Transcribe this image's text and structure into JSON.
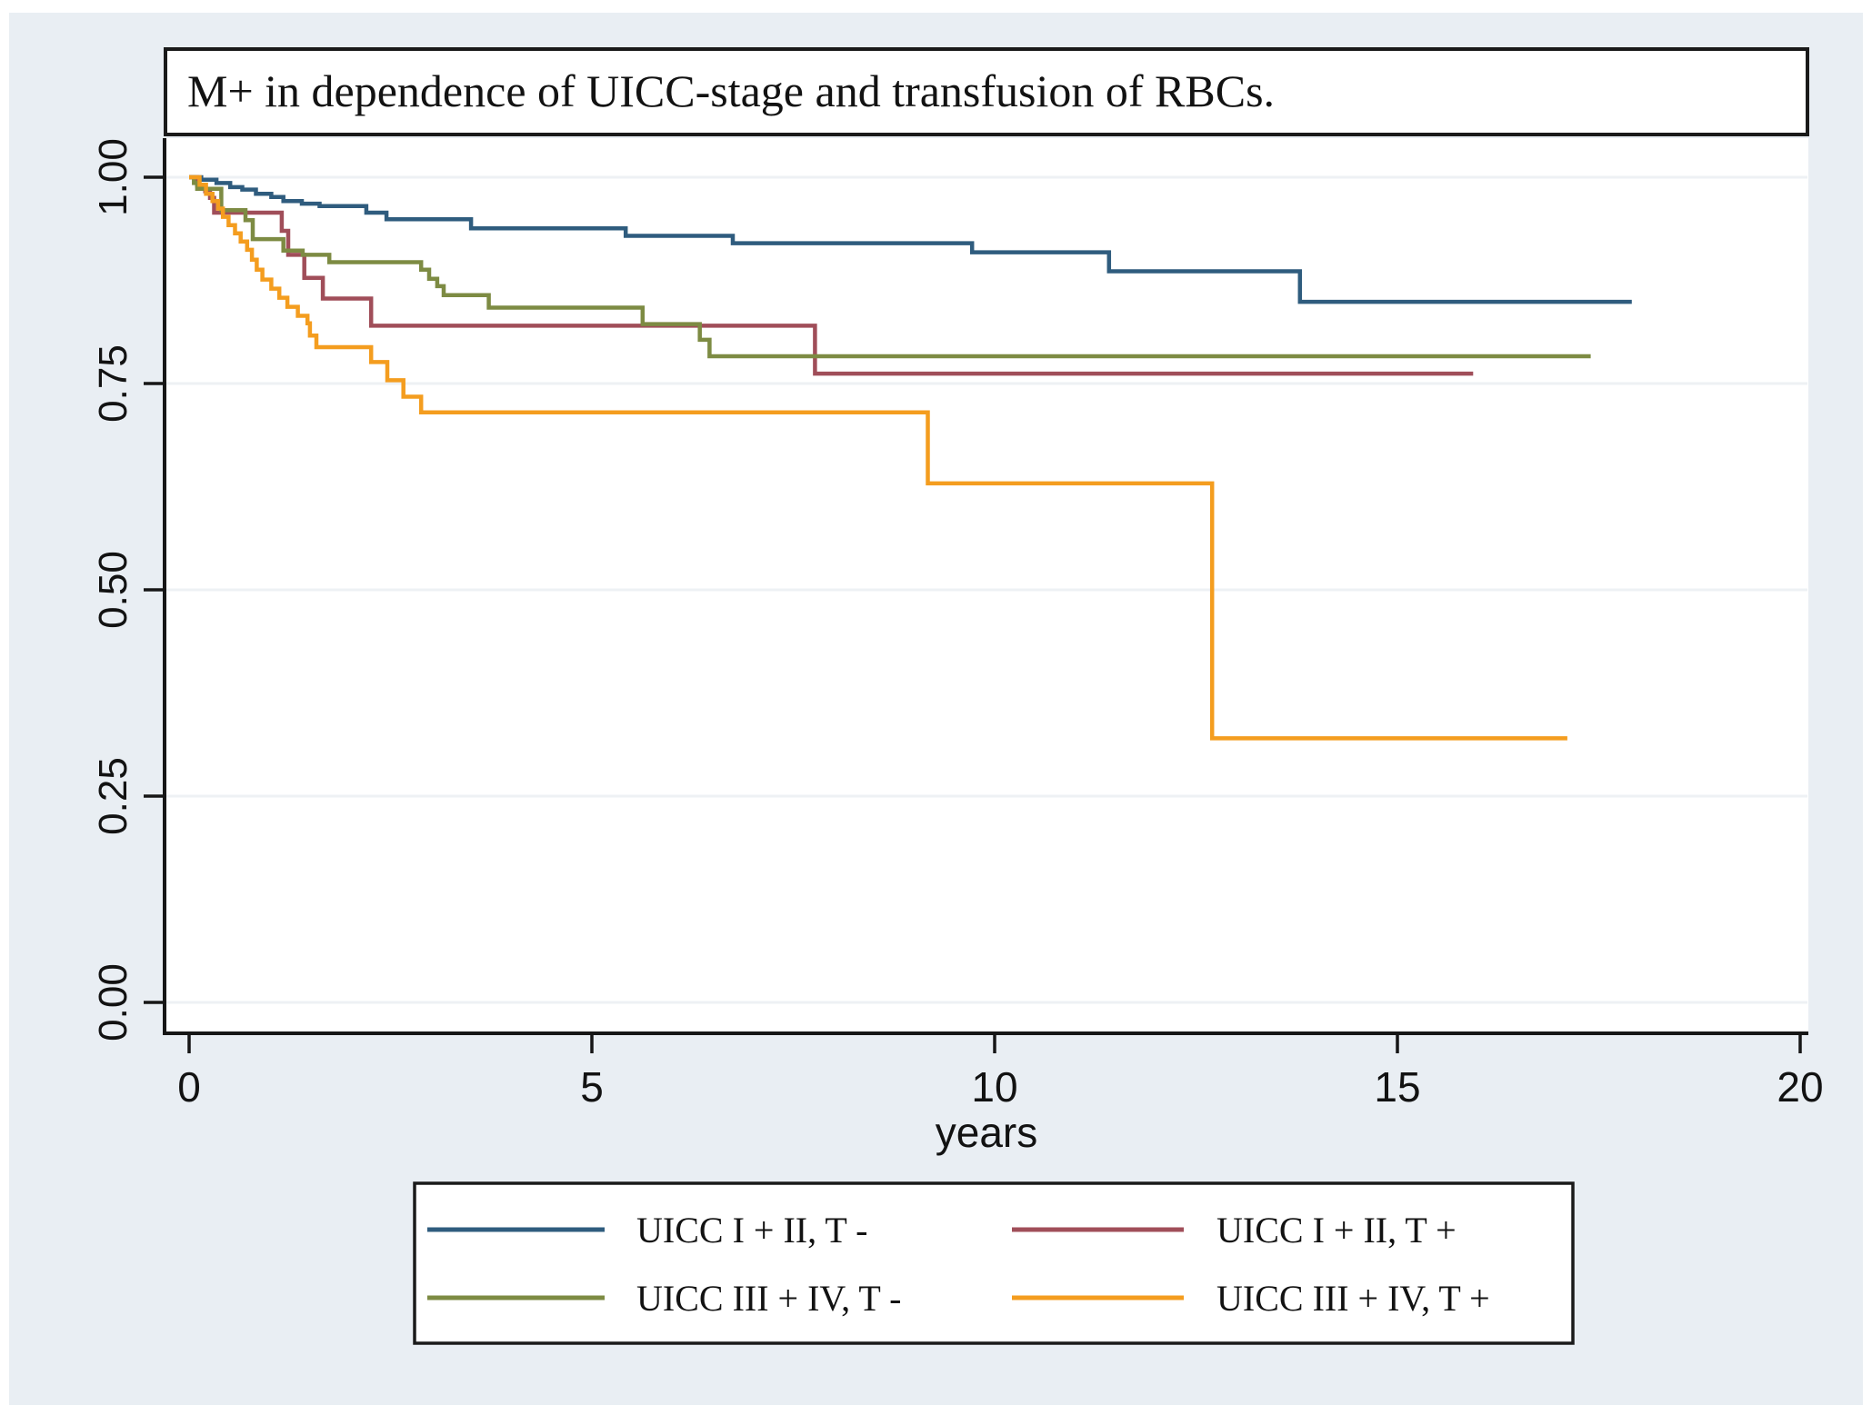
{
  "title": "M+ in dependence of UICC-stage and transfusion of RBCs.",
  "colors": {
    "figure_background": "#e9eef3",
    "plot_background": "#ffffff",
    "gridline": "#eef1f4",
    "axis": "#161616",
    "text": "#121212",
    "box_border": "#1a1a1a",
    "navy": "#2f5c7e",
    "maroon": "#a04e59",
    "olive": "#7d8b43",
    "orange": "#f49d1f"
  },
  "chart_data": {
    "type": "line",
    "subtype": "kaplan-meier-step",
    "title": "M+ in dependence of UICC-stage and transfusion of RBCs.",
    "xlabel": "years",
    "ylabel": "",
    "xlim": [
      0,
      20
    ],
    "ylim": [
      0.0,
      1.0
    ],
    "xtick_values": [
      0,
      5,
      10,
      15,
      20
    ],
    "ytick_labels": [
      "1.00",
      "0.75",
      "0.50",
      "0.25",
      "0.00"
    ],
    "grid": true,
    "legend_position": "below",
    "series": [
      {
        "name": "UICC I + II, T -",
        "color": "#2f5c7e",
        "points": [
          [
            0,
            1.0
          ],
          [
            0.15,
            0.997
          ],
          [
            0.34,
            0.993
          ],
          [
            0.51,
            0.988
          ],
          [
            0.66,
            0.985
          ],
          [
            0.83,
            0.98
          ],
          [
            1.02,
            0.976
          ],
          [
            1.17,
            0.971
          ],
          [
            1.4,
            0.968
          ],
          [
            1.62,
            0.965
          ],
          [
            2.2,
            0.957
          ],
          [
            2.45,
            0.949
          ],
          [
            3.5,
            0.938
          ],
          [
            5.42,
            0.929
          ],
          [
            6.75,
            0.92
          ],
          [
            9.72,
            0.909
          ],
          [
            11.42,
            0.886
          ],
          [
            13.79,
            0.849
          ],
          [
            17.91,
            0.849
          ]
        ]
      },
      {
        "name": "UICC I + II, T +",
        "color": "#a04e59",
        "points": [
          [
            0,
            1.0
          ],
          [
            0.1,
            0.99
          ],
          [
            0.2,
            0.983
          ],
          [
            0.26,
            0.975
          ],
          [
            0.31,
            0.957
          ],
          [
            1.15,
            0.935
          ],
          [
            1.23,
            0.906
          ],
          [
            1.43,
            0.878
          ],
          [
            1.66,
            0.853
          ],
          [
            2.26,
            0.82
          ],
          [
            7.77,
            0.762
          ],
          [
            15.94,
            0.762
          ]
        ]
      },
      {
        "name": "UICC III + IV, T -",
        "color": "#7d8b43",
        "points": [
          [
            0,
            1.0
          ],
          [
            0.06,
            0.993
          ],
          [
            0.1,
            0.986
          ],
          [
            0.4,
            0.96
          ],
          [
            0.7,
            0.948
          ],
          [
            0.79,
            0.925
          ],
          [
            1.17,
            0.911
          ],
          [
            1.41,
            0.906
          ],
          [
            1.74,
            0.897
          ],
          [
            2.88,
            0.888
          ],
          [
            2.98,
            0.877
          ],
          [
            3.08,
            0.868
          ],
          [
            3.16,
            0.857
          ],
          [
            3.72,
            0.842
          ],
          [
            5.63,
            0.822
          ],
          [
            6.34,
            0.803
          ],
          [
            6.46,
            0.783
          ],
          [
            17.4,
            0.783
          ]
        ]
      },
      {
        "name": "UICC III + IV, T +",
        "color": "#f49d1f",
        "points": [
          [
            0,
            1.0
          ],
          [
            0.13,
            0.991
          ],
          [
            0.21,
            0.98
          ],
          [
            0.29,
            0.971
          ],
          [
            0.36,
            0.962
          ],
          [
            0.42,
            0.952
          ],
          [
            0.49,
            0.942
          ],
          [
            0.57,
            0.932
          ],
          [
            0.64,
            0.922
          ],
          [
            0.72,
            0.912
          ],
          [
            0.78,
            0.9
          ],
          [
            0.84,
            0.888
          ],
          [
            0.91,
            0.876
          ],
          [
            1.02,
            0.865
          ],
          [
            1.12,
            0.854
          ],
          [
            1.22,
            0.843
          ],
          [
            1.35,
            0.832
          ],
          [
            1.47,
            0.823
          ],
          [
            1.5,
            0.808
          ],
          [
            1.58,
            0.794
          ],
          [
            2.26,
            0.776
          ],
          [
            2.46,
            0.754
          ],
          [
            2.66,
            0.734
          ],
          [
            2.88,
            0.715
          ],
          [
            9.17,
            0.629
          ],
          [
            12.7,
            0.32
          ],
          [
            17.11,
            0.32
          ]
        ]
      }
    ]
  },
  "legend": {
    "items": [
      {
        "label": "UICC I + II, T -",
        "series": 0
      },
      {
        "label": "UICC I + II, T +",
        "series": 1
      },
      {
        "label": "UICC III + IV, T -",
        "series": 2
      },
      {
        "label": "UICC III + IV, T +",
        "series": 3
      }
    ]
  }
}
